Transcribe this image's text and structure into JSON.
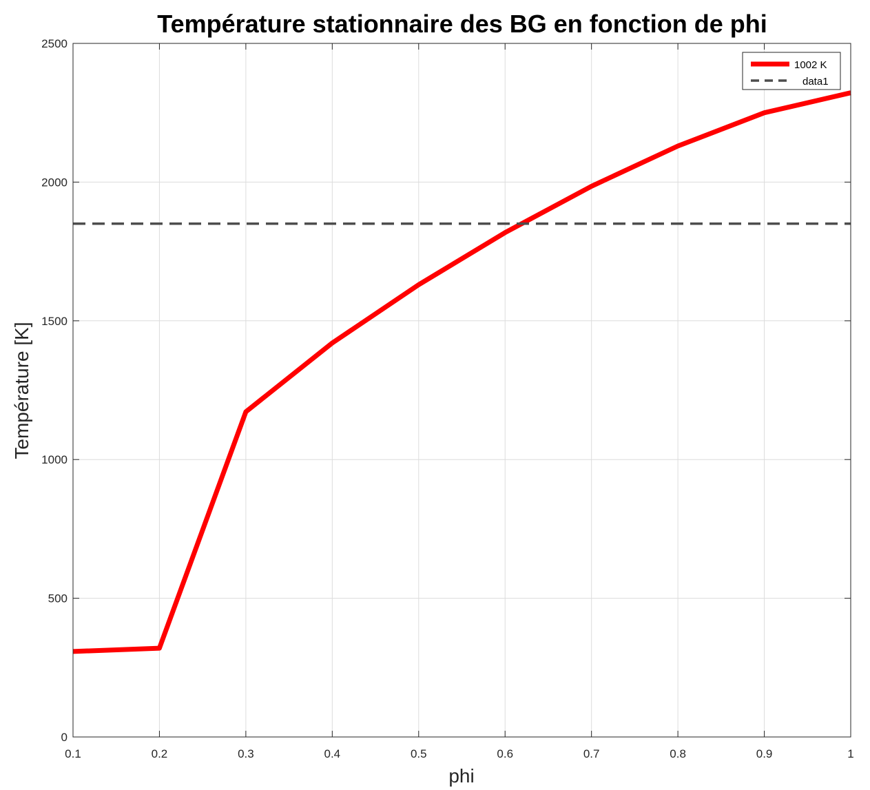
{
  "chart_data": {
    "type": "line",
    "title": "Température stationnaire des BG en fonction de phi",
    "xlabel": "phi",
    "ylabel": "Température [K]",
    "xlim": [
      0.1,
      1
    ],
    "ylim": [
      0,
      2500
    ],
    "xticks": [
      0.1,
      0.2,
      0.3,
      0.4,
      0.5,
      0.6,
      0.7,
      0.8,
      0.9,
      1
    ],
    "xtick_labels": [
      "0.1",
      "0.2",
      "0.3",
      "0.4",
      "0.5",
      "0.6",
      "0.7",
      "0.8",
      "0.9",
      "1"
    ],
    "yticks": [
      0,
      500,
      1000,
      1500,
      2000,
      2500
    ],
    "ytick_labels": [
      "0",
      "500",
      "1000",
      "1500",
      "2000",
      "2500"
    ],
    "grid": true,
    "legend_position": "top-right",
    "series": [
      {
        "name": "1002 K",
        "color": "#ff0000",
        "style": "solid",
        "x": [
          0.1,
          0.2,
          0.3,
          0.4,
          0.5,
          0.6,
          0.7,
          0.8,
          0.9,
          1.0
        ],
        "y": [
          308,
          320,
          1172,
          1420,
          1630,
          1818,
          1985,
          2130,
          2250,
          2322
        ]
      },
      {
        "name": "data1",
        "color": "#4d4d4d",
        "style": "dashed",
        "x": [
          0.1,
          1.0
        ],
        "y": [
          1850,
          1850
        ]
      }
    ]
  }
}
